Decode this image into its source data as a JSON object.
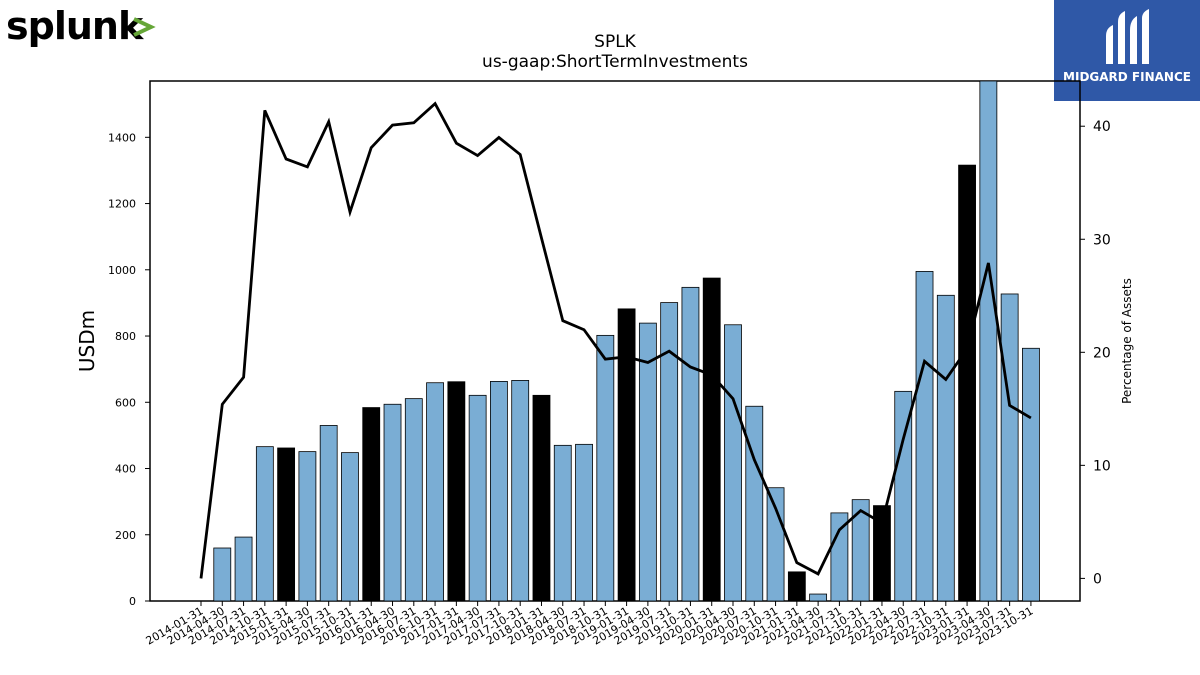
{
  "logos": {
    "left_text": "splunk>",
    "right_text": "MIDGARD FINANCE"
  },
  "colors": {
    "bar_default": "#7aadd4",
    "bar_highlight": "#000000",
    "line": "#000000",
    "splunk_text": "#000000",
    "splunk_chevron": "#65a637",
    "midgard_bg": "#2f58a7"
  },
  "chart_data": {
    "type": "bar",
    "title": "SPLK",
    "subtitle": "us-gaap:ShortTermInvestments",
    "ylabel": "USDm",
    "y2label": "Percentage of Assets",
    "ylim": [
      0,
      1570
    ],
    "y2lim": [
      -2,
      44
    ],
    "yticks": [
      0,
      200,
      400,
      600,
      800,
      1000,
      1200,
      1400
    ],
    "y2ticks": [
      0,
      10,
      20,
      30,
      40
    ],
    "grid": false,
    "categories": [
      "2014-01-31",
      "2014-04-30",
      "2014-07-31",
      "2014-10-31",
      "2015-01-31",
      "2015-04-30",
      "2015-07-31",
      "2015-10-31",
      "2016-01-31",
      "2016-04-30",
      "2016-07-31",
      "2016-10-31",
      "2017-01-31",
      "2017-04-30",
      "2017-07-31",
      "2017-10-31",
      "2018-01-31",
      "2018-04-30",
      "2018-07-31",
      "2018-10-31",
      "2019-01-31",
      "2019-04-30",
      "2019-07-31",
      "2019-10-31",
      "2020-01-31",
      "2020-04-30",
      "2020-07-31",
      "2020-10-31",
      "2021-01-31",
      "2021-04-30",
      "2021-07-31",
      "2021-10-31",
      "2022-01-31",
      "2022-04-30",
      "2022-07-31",
      "2022-10-31",
      "2023-01-31",
      "2023-04-30",
      "2023-07-31",
      "2023-10-31"
    ],
    "series": [
      {
        "type": "bar",
        "axis": "left",
        "values": [
          0,
          160,
          193,
          466,
          462,
          451,
          530,
          448,
          584,
          594,
          611,
          659,
          662,
          621,
          663,
          666,
          621,
          470,
          473,
          802,
          882,
          839,
          901,
          947,
          975,
          834,
          588,
          342,
          88,
          21,
          266,
          306,
          288,
          633,
          995,
          923,
          1316,
          1600,
          927,
          763
        ],
        "highlight": [
          false,
          false,
          false,
          false,
          true,
          false,
          false,
          false,
          true,
          false,
          false,
          false,
          true,
          false,
          false,
          false,
          true,
          false,
          false,
          false,
          true,
          false,
          false,
          false,
          true,
          false,
          false,
          false,
          true,
          false,
          false,
          false,
          true,
          false,
          false,
          false,
          true,
          false,
          false,
          false
        ]
      },
      {
        "type": "line",
        "axis": "right",
        "values": [
          0.0,
          15.4,
          17.8,
          41.4,
          37.1,
          36.4,
          40.4,
          32.4,
          38.1,
          40.1,
          40.3,
          42.0,
          38.5,
          37.4,
          39.0,
          37.5,
          30.1,
          22.8,
          22.0,
          19.4,
          19.6,
          19.1,
          20.1,
          18.7,
          18.0,
          15.9,
          10.5,
          6.2,
          1.4,
          0.4,
          4.3,
          6.0,
          4.9,
          12.3,
          19.2,
          17.6,
          20.3,
          27.9,
          15.3,
          14.2
        ]
      }
    ]
  }
}
